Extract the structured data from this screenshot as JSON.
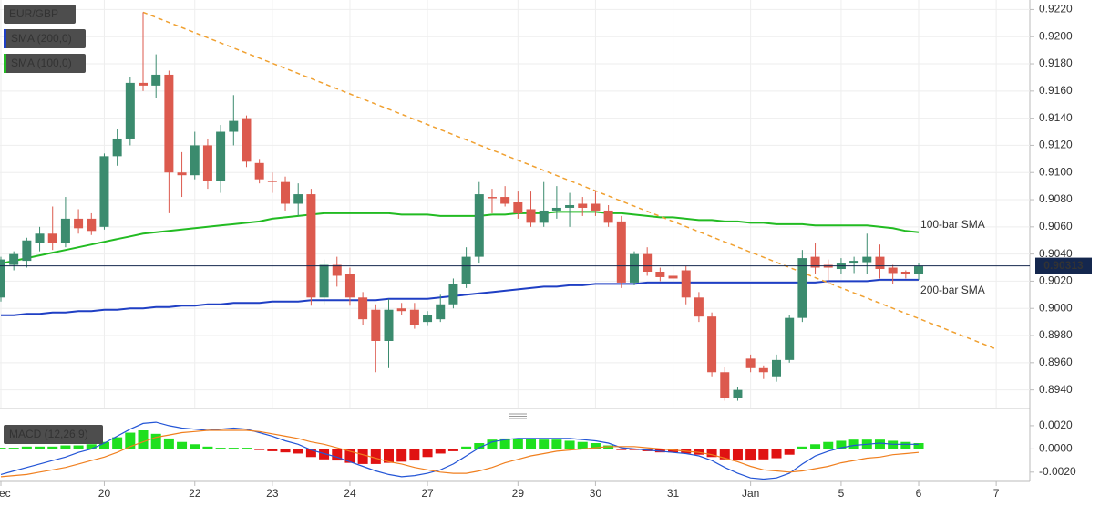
{
  "chart_data": [
    {
      "type": "candlestick",
      "title": "EUR/GBP",
      "up_color": "#3b8b6e",
      "down_color": "#dc5a4e",
      "open": [
        0.9008,
        0.9032,
        0.9035,
        0.9048,
        0.9055,
        0.9048,
        0.9066,
        0.9066,
        0.906,
        0.9112,
        0.9125,
        0.9166,
        0.9164,
        0.9172,
        0.91,
        0.9098,
        0.912,
        0.9094,
        0.913,
        0.914,
        0.9107,
        0.9094,
        0.9093,
        0.9077,
        0.9084,
        0.9008,
        0.9032,
        0.9025,
        0.9008,
        0.8999,
        0.8976,
        0.9,
        0.8999,
        0.899,
        0.8992,
        0.9003,
        0.9018,
        0.9038,
        0.9082,
        0.9082,
        0.9078,
        0.9073,
        0.9063,
        0.9072,
        0.9074,
        0.9077,
        0.9077,
        0.9072,
        0.9064,
        0.9019,
        0.904,
        0.9027,
        0.9024,
        0.9028,
        0.9008,
        0.8994,
        0.8953,
        0.8934,
        0.8963,
        0.8956,
        0.895,
        0.8962,
        0.8993,
        0.9038,
        0.9032,
        0.9029,
        0.9033,
        0.9034,
        0.9038,
        0.903,
        0.9027,
        0.9025
      ],
      "high": [
        0.9038,
        0.9042,
        0.9052,
        0.906,
        0.9075,
        0.9082,
        0.9073,
        0.907,
        0.9114,
        0.9132,
        0.917,
        0.9218,
        0.9187,
        0.9175,
        0.9115,
        0.913,
        0.9125,
        0.9135,
        0.9157,
        0.9142,
        0.911,
        0.91,
        0.9097,
        0.9092,
        0.9088,
        0.9036,
        0.9038,
        0.903,
        0.9012,
        0.9003,
        0.9007,
        0.9004,
        0.9004,
        0.8998,
        0.901,
        0.9022,
        0.9045,
        0.9093,
        0.9088,
        0.909,
        0.9086,
        0.9086,
        0.9093,
        0.909,
        0.9085,
        0.9082,
        0.9086,
        0.9076,
        0.9068,
        0.9042,
        0.9045,
        0.903,
        0.9032,
        0.9031,
        0.9012,
        0.8997,
        0.8957,
        0.8942,
        0.8966,
        0.8958,
        0.8966,
        0.8995,
        0.9043,
        0.9048,
        0.9036,
        0.9037,
        0.9038,
        0.9055,
        0.9047,
        0.9032,
        0.9028,
        0.9033
      ],
      "low": [
        0.9005,
        0.9028,
        0.903,
        0.9042,
        0.9043,
        0.9045,
        0.9055,
        0.9054,
        0.9058,
        0.9105,
        0.912,
        0.916,
        0.9155,
        0.907,
        0.9082,
        0.9095,
        0.9088,
        0.9085,
        0.912,
        0.9104,
        0.9092,
        0.9085,
        0.9072,
        0.9068,
        0.9002,
        0.9003,
        0.9016,
        0.9002,
        0.8988,
        0.8953,
        0.8956,
        0.8995,
        0.8985,
        0.8987,
        0.899,
        0.9,
        0.9015,
        0.9033,
        0.907,
        0.9075,
        0.9066,
        0.906,
        0.906,
        0.9066,
        0.906,
        0.9068,
        0.9068,
        0.906,
        0.9015,
        0.9017,
        0.9024,
        0.902,
        0.9019,
        0.9003,
        0.899,
        0.895,
        0.8932,
        0.8932,
        0.8953,
        0.8948,
        0.8946,
        0.896,
        0.899,
        0.9025,
        0.9018,
        0.9025,
        0.9026,
        0.9025,
        0.9022,
        0.9018,
        0.9022,
        0.9021
      ],
      "close": [
        0.9036,
        0.904,
        0.905,
        0.9055,
        0.9048,
        0.9066,
        0.9059,
        0.9057,
        0.9112,
        0.9125,
        0.9166,
        0.9164,
        0.9172,
        0.91,
        0.9098,
        0.912,
        0.9094,
        0.913,
        0.9138,
        0.9108,
        0.9095,
        0.9093,
        0.9077,
        0.9084,
        0.9008,
        0.9032,
        0.9024,
        0.9008,
        0.8992,
        0.8976,
        0.8999,
        0.8998,
        0.8988,
        0.8995,
        0.9003,
        0.9018,
        0.9038,
        0.9084,
        0.9081,
        0.9077,
        0.907,
        0.9063,
        0.9072,
        0.9074,
        0.9076,
        0.9074,
        0.9072,
        0.9063,
        0.9019,
        0.904,
        0.9027,
        0.9023,
        0.9022,
        0.9008,
        0.8994,
        0.8953,
        0.8934,
        0.894,
        0.8956,
        0.8953,
        0.8962,
        0.8993,
        0.9037,
        0.903,
        0.903,
        0.9033,
        0.9035,
        0.9038,
        0.9029,
        0.9026,
        0.9025,
        0.9031
      ],
      "series": [
        {
          "name": "SMA (200,0)",
          "label": "200-bar SMA",
          "color": "#1f3fc4",
          "values": [
            0.8995,
            0.8995,
            0.8996,
            0.8996,
            0.8997,
            0.8997,
            0.8998,
            0.8998,
            0.8999,
            0.8999,
            0.9,
            0.9,
            0.9001,
            0.9001,
            0.9002,
            0.9002,
            0.9003,
            0.9003,
            0.9004,
            0.9004,
            0.9004,
            0.9005,
            0.9005,
            0.9005,
            0.9006,
            0.9006,
            0.9006,
            0.9006,
            0.9006,
            0.9006,
            0.9007,
            0.9007,
            0.9007,
            0.9007,
            0.9008,
            0.9009,
            0.901,
            0.9011,
            0.9012,
            0.9013,
            0.9014,
            0.9015,
            0.9016,
            0.9016,
            0.9017,
            0.9017,
            0.9018,
            0.9018,
            0.9018,
            0.9018,
            0.9019,
            0.9019,
            0.9019,
            0.9019,
            0.9019,
            0.9019,
            0.9019,
            0.9019,
            0.9019,
            0.9019,
            0.9019,
            0.9019,
            0.9019,
            0.9019,
            0.902,
            0.902,
            0.902,
            0.902,
            0.9021,
            0.9021,
            0.9021,
            0.9021
          ]
        },
        {
          "name": "SMA (100,0)",
          "label": "100-bar SMA",
          "color": "#22bb22",
          "values": [
            0.9033,
            0.9035,
            0.9037,
            0.9039,
            0.9041,
            0.9043,
            0.9045,
            0.9047,
            0.9049,
            0.9051,
            0.9053,
            0.9055,
            0.9056,
            0.9057,
            0.9058,
            0.9059,
            0.906,
            0.9061,
            0.9062,
            0.9063,
            0.9064,
            0.9066,
            0.9067,
            0.9068,
            0.9069,
            0.907,
            0.907,
            0.907,
            0.907,
            0.907,
            0.907,
            0.9069,
            0.9069,
            0.9069,
            0.9068,
            0.9068,
            0.9068,
            0.9068,
            0.9069,
            0.9069,
            0.907,
            0.907,
            0.907,
            0.9071,
            0.9071,
            0.9071,
            0.9071,
            0.907,
            0.907,
            0.9069,
            0.9068,
            0.9067,
            0.9067,
            0.9066,
            0.9065,
            0.9065,
            0.9064,
            0.9064,
            0.9063,
            0.9063,
            0.9062,
            0.9062,
            0.9062,
            0.9061,
            0.9061,
            0.9061,
            0.9061,
            0.9061,
            0.906,
            0.9059,
            0.9057,
            0.9056
          ]
        }
      ],
      "trendline": {
        "color": "#f0a030",
        "x": [
          11,
          77
        ],
        "values": [
          0.9218,
          0.897
        ]
      },
      "last_price": 0.90313,
      "last_price_color": "#14274e",
      "xlim": [
        -0.07,
        79.6
      ],
      "xticks": [
        {
          "value": 0,
          "label": "Dec"
        },
        {
          "value": 8,
          "label": "20"
        },
        {
          "value": 15,
          "label": "22"
        },
        {
          "value": 21,
          "label": "23"
        },
        {
          "value": 27,
          "label": "24"
        },
        {
          "value": 33,
          "label": "27"
        },
        {
          "value": 40,
          "label": "29"
        },
        {
          "value": 46,
          "label": "30"
        },
        {
          "value": 52,
          "label": "31"
        },
        {
          "value": 58,
          "label": "Jan"
        },
        {
          "value": 65,
          "label": "5"
        },
        {
          "value": 71,
          "label": "6"
        },
        {
          "value": 77,
          "label": "7"
        }
      ],
      "ylim": [
        0.8927,
        0.9227
      ],
      "yticks": [
        {
          "value": 0.894,
          "label": "0.8940"
        },
        {
          "value": 0.896,
          "label": "0.8960"
        },
        {
          "value": 0.898,
          "label": "0.8980"
        },
        {
          "value": 0.9,
          "label": "0.9000"
        },
        {
          "value": 0.902,
          "label": "0.9020"
        },
        {
          "value": 0.904,
          "label": "0.9040"
        },
        {
          "value": 0.906,
          "label": "0.9060"
        },
        {
          "value": 0.908,
          "label": "0.9080"
        },
        {
          "value": 0.91,
          "label": "0.9100"
        },
        {
          "value": 0.912,
          "label": "0.9120"
        },
        {
          "value": 0.914,
          "label": "0.9140"
        },
        {
          "value": 0.916,
          "label": "0.9160"
        },
        {
          "value": 0.918,
          "label": "0.9180"
        },
        {
          "value": 0.92,
          "label": "0.9200"
        },
        {
          "value": 0.922,
          "label": "0.9220"
        }
      ],
      "grid": true
    },
    {
      "type": "macd",
      "title": "MACD (12,26,9)",
      "positive_color": "#1fe01f",
      "negative_color": "#e01212",
      "histogram": [
        0.0001,
        0.0001,
        0.0002,
        0.0002,
        0.0002,
        0.0003,
        0.0003,
        0.0004,
        0.0006,
        0.001,
        0.0014,
        0.0016,
        0.0013,
        0.0009,
        0.0006,
        0.0004,
        0.0002,
        0.0001,
        0.0001,
        0.0001,
        -0.0001,
        -0.0002,
        -0.0003,
        -0.0004,
        -0.0007,
        -0.0009,
        -0.001,
        -0.0012,
        -0.0013,
        -0.0013,
        -0.0012,
        -0.0011,
        -0.001,
        -0.0007,
        -0.0004,
        -0.0002,
        0.0002,
        0.0005,
        0.0008,
        0.0009,
        0.0009,
        0.0009,
        0.0008,
        0.0008,
        0.0007,
        0.0006,
        0.0005,
        0.0003,
        -0.0001,
        -0.0001,
        -0.0002,
        -0.0003,
        -0.0003,
        -0.0004,
        -0.0005,
        -0.0007,
        -0.0009,
        -0.001,
        -0.001,
        -0.0009,
        -0.0008,
        -0.0005,
        0.0002,
        0.0004,
        0.0006,
        0.0007,
        0.0008,
        0.0008,
        0.0008,
        0.0007,
        0.0006,
        0.0005
      ],
      "series": [
        {
          "color": "#2355d6",
          "values": [
            -0.0022,
            -0.0019,
            -0.0016,
            -0.0013,
            -0.001,
            -0.0007,
            -0.0003,
            0.0,
            0.0005,
            0.0011,
            0.0017,
            0.0022,
            0.0023,
            0.002,
            0.0018,
            0.0017,
            0.0016,
            0.0017,
            0.0018,
            0.0017,
            0.0014,
            0.0011,
            0.0007,
            0.0004,
            -0.0001,
            -0.0004,
            -0.0007,
            -0.0011,
            -0.0015,
            -0.0019,
            -0.0022,
            -0.0024,
            -0.0023,
            -0.0021,
            -0.0018,
            -0.0013,
            -0.0006,
            0.0001,
            0.0006,
            0.0008,
            0.0009,
            0.0009,
            0.0009,
            0.0009,
            0.0009,
            0.0008,
            0.0007,
            0.0005,
            0.0001,
            0.0,
            -0.0001,
            -0.0002,
            -0.0003,
            -0.0004,
            -0.0006,
            -0.001,
            -0.0016,
            -0.0021,
            -0.0025,
            -0.0026,
            -0.0025,
            -0.0021,
            -0.0013,
            -0.0006,
            -0.0002,
            0.0001,
            0.0003,
            0.0004,
            0.0005,
            0.0004,
            0.0004,
            0.0004
          ]
        },
        {
          "color": "#f07f1e",
          "values": [
            -0.0024,
            -0.0023,
            -0.0022,
            -0.002,
            -0.0018,
            -0.0016,
            -0.0013,
            -0.001,
            -0.0007,
            -0.0003,
            0.0002,
            0.0006,
            0.001,
            0.0012,
            0.0014,
            0.0015,
            0.0016,
            0.0016,
            0.0016,
            0.0016,
            0.0015,
            0.0013,
            0.0011,
            0.0009,
            0.0006,
            0.0004,
            0.0001,
            -0.0002,
            -0.0005,
            -0.0008,
            -0.0011,
            -0.0013,
            -0.0016,
            -0.0018,
            -0.002,
            -0.0021,
            -0.0021,
            -0.0019,
            -0.0016,
            -0.0012,
            -0.0009,
            -0.0006,
            -0.0004,
            -0.0002,
            -0.0001,
            0.0,
            0.0001,
            0.0002,
            0.0002,
            0.0002,
            0.0001,
            0.0,
            -0.0001,
            -0.0002,
            -0.0003,
            -0.0005,
            -0.0008,
            -0.0011,
            -0.0015,
            -0.0018,
            -0.0019,
            -0.002,
            -0.0019,
            -0.0017,
            -0.0015,
            -0.0012,
            -0.001,
            -0.0008,
            -0.0007,
            -0.0005,
            -0.0004,
            -0.0003
          ]
        }
      ],
      "ylim": [
        -0.0028,
        0.0027
      ],
      "yticks": [
        {
          "value": -0.002,
          "label": "-0.0020"
        },
        {
          "value": 0,
          "label": "0.0000"
        },
        {
          "value": 0.002,
          "label": "0.0020"
        }
      ]
    }
  ]
}
